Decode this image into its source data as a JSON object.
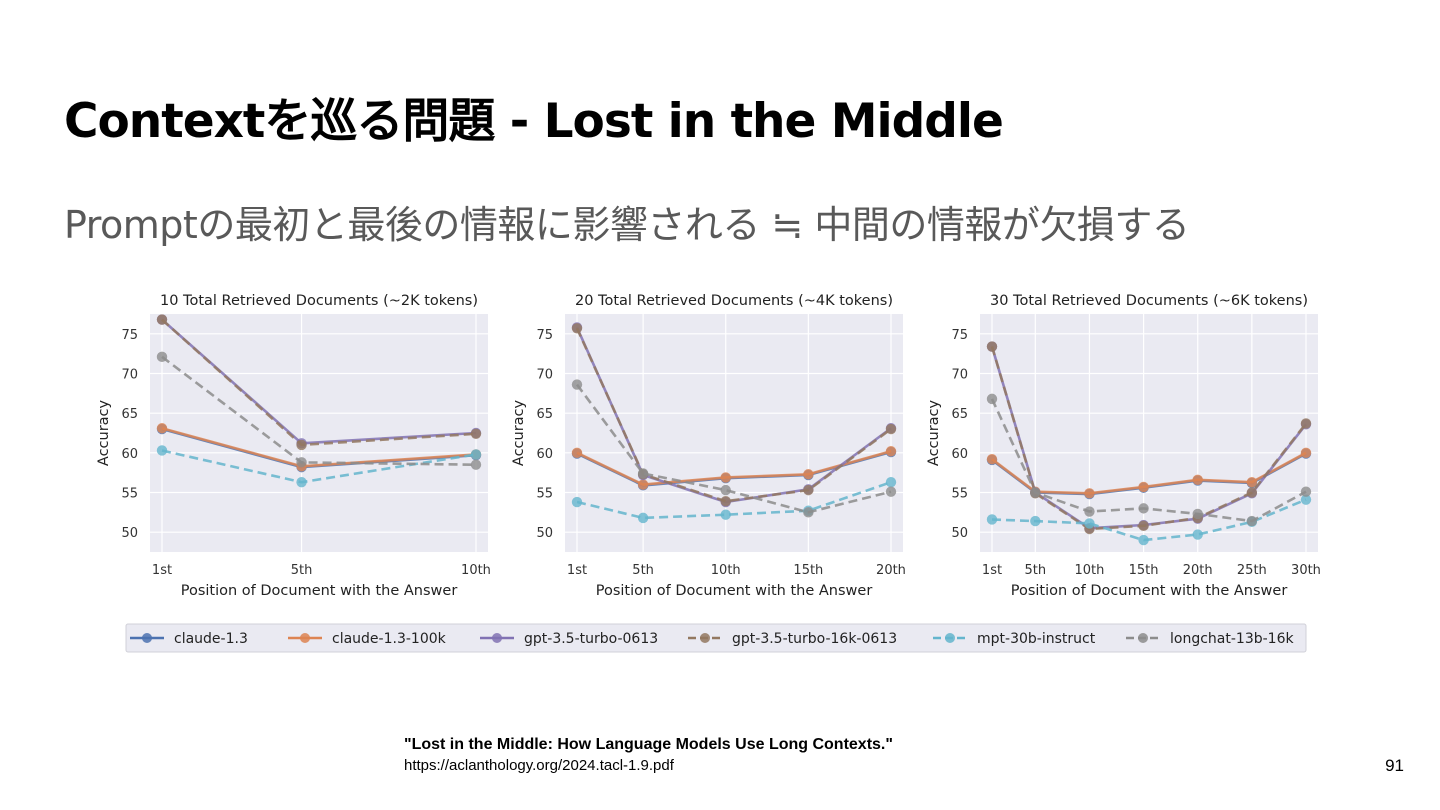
{
  "slide": {
    "title": "Contextを巡る問題 - Lost in the Middle",
    "subtitle": "Promptの最初と最後の情報に影響される ≒ 中間の情報が欠損する",
    "citation_title": "\"Lost in the Middle: How Language Models Use Long Contexts.\"",
    "citation_url": "https://aclanthology.org/2024.tacl-1.9.pdf",
    "page_number": "91"
  },
  "chart_data": {
    "type": "line",
    "legend_placement": "bottom",
    "grid": true,
    "legend": [
      {
        "name": "claude-1.3",
        "color": "#4c72b0",
        "dashed": false
      },
      {
        "name": "claude-1.3-100k",
        "color": "#dd8452",
        "dashed": false
      },
      {
        "name": "gpt-3.5-turbo-0613",
        "color": "#8172b3",
        "dashed": false
      },
      {
        "name": "gpt-3.5-turbo-16k-0613",
        "color": "#937860",
        "dashed": true
      },
      {
        "name": "mpt-30b-instruct",
        "color": "#64b5cd",
        "dashed": true
      },
      {
        "name": "longchat-13b-16k",
        "color": "#8c8c8c",
        "dashed": true
      }
    ],
    "panels": [
      {
        "title": "10 Total Retrieved Documents (~2K tokens)",
        "xlabel": "Position of Document with the Answer",
        "ylabel": "Accuracy",
        "x": [
          1,
          5,
          10
        ],
        "x_tick_labels": [
          "1st",
          "5th",
          "10th"
        ],
        "y_ticks": [
          50,
          55,
          60,
          65,
          70,
          75
        ],
        "ylim": [
          47.5,
          77.5
        ],
        "series": [
          {
            "name": "claude-1.3",
            "values": [
              63.0,
              58.2,
              59.7
            ]
          },
          {
            "name": "claude-1.3-100k",
            "values": [
              63.1,
              58.3,
              59.8
            ]
          },
          {
            "name": "gpt-3.5-turbo-0613",
            "values": [
              76.8,
              61.2,
              62.5
            ]
          },
          {
            "name": "gpt-3.5-turbo-16k-0613",
            "values": [
              76.8,
              61.0,
              62.4
            ]
          },
          {
            "name": "mpt-30b-instruct",
            "values": [
              60.3,
              56.3,
              59.8
            ]
          },
          {
            "name": "longchat-13b-16k",
            "values": [
              72.1,
              58.8,
              58.5
            ]
          }
        ]
      },
      {
        "title": "20 Total Retrieved Documents (~4K tokens)",
        "xlabel": "Position of Document with the Answer",
        "ylabel": "Accuracy",
        "x": [
          1,
          5,
          10,
          15,
          20
        ],
        "x_tick_labels": [
          "1st",
          "5th",
          "10th",
          "15th",
          "20th"
        ],
        "y_ticks": [
          50,
          55,
          60,
          65,
          70,
          75
        ],
        "ylim": [
          47.5,
          77.5
        ],
        "series": [
          {
            "name": "claude-1.3",
            "values": [
              59.9,
              55.9,
              56.8,
              57.2,
              60.1
            ]
          },
          {
            "name": "claude-1.3-100k",
            "values": [
              60.0,
              56.0,
              56.9,
              57.3,
              60.2
            ]
          },
          {
            "name": "gpt-3.5-turbo-0613",
            "values": [
              75.8,
              57.2,
              53.8,
              55.4,
              63.1
            ]
          },
          {
            "name": "gpt-3.5-turbo-16k-0613",
            "values": [
              75.7,
              57.3,
              53.9,
              55.3,
              63.0
            ]
          },
          {
            "name": "mpt-30b-instruct",
            "values": [
              53.8,
              51.8,
              52.2,
              52.7,
              56.3
            ]
          },
          {
            "name": "longchat-13b-16k",
            "values": [
              68.6,
              57.4,
              55.3,
              52.5,
              55.1
            ]
          }
        ]
      },
      {
        "title": "30 Total Retrieved Documents (~6K tokens)",
        "xlabel": "Position of Document with the Answer",
        "ylabel": "Accuracy",
        "x": [
          1,
          5,
          10,
          15,
          20,
          25,
          30
        ],
        "x_tick_labels": [
          "1st",
          "5th",
          "10th",
          "15th",
          "20th",
          "25th",
          "30th"
        ],
        "y_ticks": [
          50,
          55,
          60,
          65,
          70,
          75
        ],
        "ylim": [
          47.5,
          77.5
        ],
        "series": [
          {
            "name": "claude-1.3",
            "values": [
              59.1,
              55.0,
              54.8,
              55.6,
              56.5,
              56.2,
              59.9
            ]
          },
          {
            "name": "claude-1.3-100k",
            "values": [
              59.2,
              55.1,
              54.9,
              55.7,
              56.6,
              56.3,
              60.0
            ]
          },
          {
            "name": "gpt-3.5-turbo-0613",
            "values": [
              73.4,
              55.0,
              50.5,
              50.9,
              51.7,
              54.9,
              63.6
            ]
          },
          {
            "name": "gpt-3.5-turbo-16k-0613",
            "values": [
              73.4,
              54.9,
              50.4,
              50.8,
              51.8,
              55.0,
              63.7
            ]
          },
          {
            "name": "mpt-30b-instruct",
            "values": [
              51.6,
              51.4,
              51.1,
              49.0,
              49.7,
              51.3,
              54.1
            ]
          },
          {
            "name": "longchat-13b-16k",
            "values": [
              66.8,
              55.0,
              52.6,
              53.0,
              52.3,
              51.4,
              55.1
            ]
          }
        ]
      }
    ]
  }
}
